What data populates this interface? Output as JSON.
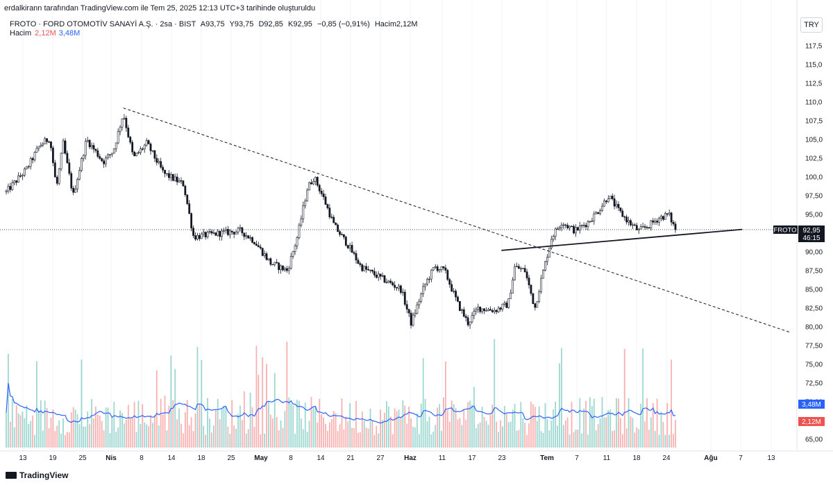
{
  "credit": "erdalkirann tarafından TradingView.com ile Tem 25, 2025 12:13 UTC+3 tarihinde oluşturuldu",
  "header": {
    "symbol_line": "FROTO · FORD OTOMOTİV SANAYİ A.Ş. · 2sa · BIST",
    "open": "A93,75",
    "high": "Y93,75",
    "low": "D92,85",
    "close": "K92,95",
    "change": "−0,85 (−0,91%)",
    "volume_label": "Hacim2,12M"
  },
  "volume_legend": {
    "label": "Hacim",
    "volume": "2,12M",
    "ma": "3,48M"
  },
  "currency": "TRY",
  "brand": "TradingView",
  "colors": {
    "up": "#26a69a",
    "down": "#ef5350",
    "ma": "#2962ff",
    "text": "#131722",
    "grid": "#e0e3eb"
  },
  "chart_data": {
    "type": "candlestick",
    "symbol": "FROTO",
    "last_price": "92,95",
    "countdown": "46:15",
    "volume_badge": "2,12M",
    "ma_badge": "3,48M",
    "y_ticks": [
      "117,5",
      "115,0",
      "112,5",
      "110,0",
      "107,5",
      "105,0",
      "102,5",
      "100,0",
      "97,50",
      "95,00",
      "92,50",
      "90,00",
      "87,50",
      "85,00",
      "82,50",
      "80,00",
      "77,50",
      "75,00",
      "72,50",
      "70,00",
      "67,50",
      "65,00"
    ],
    "x_ticks": [
      {
        "label": "13",
        "bold": false
      },
      {
        "label": "19",
        "bold": false
      },
      {
        "label": "25",
        "bold": false
      },
      {
        "label": "Nis",
        "bold": true
      },
      {
        "label": "8",
        "bold": false
      },
      {
        "label": "14",
        "bold": false
      },
      {
        "label": "18",
        "bold": false
      },
      {
        "label": "25",
        "bold": false
      },
      {
        "label": "May",
        "bold": true
      },
      {
        "label": "8",
        "bold": false
      },
      {
        "label": "14",
        "bold": false
      },
      {
        "label": "21",
        "bold": false
      },
      {
        "label": "27",
        "bold": false
      },
      {
        "label": "Haz",
        "bold": true
      },
      {
        "label": "11",
        "bold": false
      },
      {
        "label": "17",
        "bold": false
      },
      {
        "label": "23",
        "bold": false
      },
      {
        "label": "Tem",
        "bold": true
      },
      {
        "label": "7",
        "bold": false
      },
      {
        "label": "11",
        "bold": false
      },
      {
        "label": "18",
        "bold": false
      },
      {
        "label": "24",
        "bold": false
      },
      {
        "label": "Ağu",
        "bold": true
      },
      {
        "label": "7",
        "bold": false
      },
      {
        "label": "13",
        "bold": false
      }
    ],
    "price_path": [
      {
        "t": 0,
        "p": 98.0
      },
      {
        "t": 0.03,
        "p": 101.0
      },
      {
        "t": 0.05,
        "p": 104.2
      },
      {
        "t": 0.065,
        "p": 105.2
      },
      {
        "t": 0.075,
        "p": 98.5
      },
      {
        "t": 0.085,
        "p": 104.5
      },
      {
        "t": 0.1,
        "p": 97.5
      },
      {
        "t": 0.12,
        "p": 105.0
      },
      {
        "t": 0.145,
        "p": 102.0
      },
      {
        "t": 0.16,
        "p": 103.5
      },
      {
        "t": 0.175,
        "p": 108.5
      },
      {
        "t": 0.19,
        "p": 102.5
      },
      {
        "t": 0.21,
        "p": 104.5
      },
      {
        "t": 0.235,
        "p": 100.5
      },
      {
        "t": 0.265,
        "p": 99.0
      },
      {
        "t": 0.28,
        "p": 92.0
      },
      {
        "t": 0.32,
        "p": 92.5
      },
      {
        "t": 0.35,
        "p": 92.8
      },
      {
        "t": 0.37,
        "p": 91.5
      },
      {
        "t": 0.395,
        "p": 88.5
      },
      {
        "t": 0.42,
        "p": 87.5
      },
      {
        "t": 0.435,
        "p": 92.0
      },
      {
        "t": 0.45,
        "p": 98.5
      },
      {
        "t": 0.46,
        "p": 100.0
      },
      {
        "t": 0.475,
        "p": 97.0
      },
      {
        "t": 0.49,
        "p": 93.5
      },
      {
        "t": 0.51,
        "p": 91.0
      },
      {
        "t": 0.53,
        "p": 88.0
      },
      {
        "t": 0.56,
        "p": 86.5
      },
      {
        "t": 0.59,
        "p": 85.0
      },
      {
        "t": 0.605,
        "p": 80.5
      },
      {
        "t": 0.625,
        "p": 85.5
      },
      {
        "t": 0.64,
        "p": 88.0
      },
      {
        "t": 0.655,
        "p": 87.5
      },
      {
        "t": 0.675,
        "p": 83.0
      },
      {
        "t": 0.69,
        "p": 80.5
      },
      {
        "t": 0.705,
        "p": 82.5
      },
      {
        "t": 0.73,
        "p": 82.2
      },
      {
        "t": 0.75,
        "p": 83.0
      },
      {
        "t": 0.76,
        "p": 88.0
      },
      {
        "t": 0.775,
        "p": 87.5
      },
      {
        "t": 0.79,
        "p": 82.5
      },
      {
        "t": 0.8,
        "p": 86.5
      },
      {
        "t": 0.815,
        "p": 92.0
      },
      {
        "t": 0.83,
        "p": 94.0
      },
      {
        "t": 0.85,
        "p": 92.8
      },
      {
        "t": 0.87,
        "p": 94.0
      },
      {
        "t": 0.885,
        "p": 95.5
      },
      {
        "t": 0.9,
        "p": 97.5
      },
      {
        "t": 0.915,
        "p": 95.5
      },
      {
        "t": 0.93,
        "p": 94.0
      },
      {
        "t": 0.945,
        "p": 92.8
      },
      {
        "t": 0.96,
        "p": 93.5
      },
      {
        "t": 0.975,
        "p": 94.5
      },
      {
        "t": 0.99,
        "p": 95.0
      },
      {
        "t": 1.0,
        "p": 92.95
      }
    ],
    "trendlines": [
      {
        "style": "dashed",
        "from": {
          "t": 0.175,
          "p": 109.2
        },
        "to": {
          "t": 1.17,
          "p": 79.3
        }
      },
      {
        "style": "solid",
        "from": {
          "t": 0.74,
          "p": 90.2
        },
        "to": {
          "t": 1.1,
          "p": 93.0
        }
      }
    ]
  }
}
